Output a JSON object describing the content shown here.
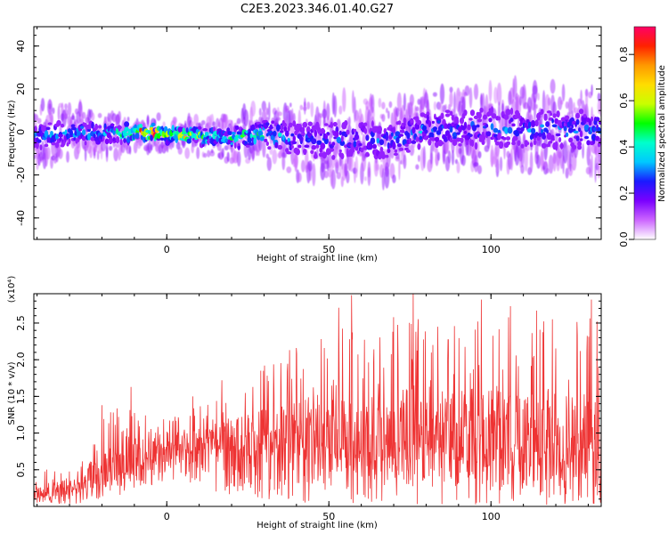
{
  "title": "C2E3.2023.346.01.40.G27",
  "chart_data": [
    {
      "type": "heatmap",
      "xlabel": "Height of straight line (km)",
      "ylabel": "Frequency (Hz)",
      "xlim": [
        -41,
        134
      ],
      "ylim": [
        -50,
        49
      ],
      "xticks": [
        0,
        50,
        100
      ],
      "yticks": [
        -40,
        -20,
        0,
        20,
        40
      ],
      "colorbar": {
        "label": "Normalized spectral amplitude",
        "range": [
          0,
          0.92
        ],
        "ticks": [
          0.0,
          0.2,
          0.4,
          0.6,
          0.8
        ],
        "colors": [
          "#ffffff",
          "#cc66ff",
          "#7a00ff",
          "#1a1aff",
          "#00c8ff",
          "#00ffcc",
          "#00ff00",
          "#c8ff00",
          "#ffdd00",
          "#ff9900",
          "#ff2200",
          "#ff0066"
        ]
      },
      "band": {
        "center_hz": [
          [
            -41,
            -2
          ],
          [
            -30,
            0
          ],
          [
            -20,
            -1
          ],
          [
            -10,
            0
          ],
          [
            0,
            -1
          ],
          [
            10,
            -2
          ],
          [
            20,
            -3
          ],
          [
            30,
            -1
          ],
          [
            40,
            -3
          ],
          [
            50,
            -4
          ],
          [
            60,
            -3
          ],
          [
            70,
            -4
          ],
          [
            80,
            2
          ],
          [
            90,
            1
          ],
          [
            100,
            2
          ],
          [
            110,
            1
          ],
          [
            120,
            1
          ],
          [
            134,
            1
          ]
        ],
        "halfwidth_hz": [
          [
            -41,
            6
          ],
          [
            -20,
            4
          ],
          [
            0,
            3
          ],
          [
            20,
            4
          ],
          [
            40,
            7
          ],
          [
            60,
            8
          ],
          [
            80,
            7
          ],
          [
            100,
            8
          ],
          [
            134,
            8
          ]
        ],
        "peak_amplitude": [
          [
            -41,
            0.35
          ],
          [
            -20,
            0.4
          ],
          [
            -5,
            0.9
          ],
          [
            5,
            0.7
          ],
          [
            15,
            0.55
          ],
          [
            30,
            0.5
          ],
          [
            40,
            0.3
          ],
          [
            60,
            0.3
          ],
          [
            80,
            0.35
          ],
          [
            100,
            0.3
          ],
          [
            134,
            0.35
          ]
        ]
      }
    },
    {
      "type": "line",
      "xlabel": "Height of straight line (km)",
      "ylabel": "SNR (10 * v/v)",
      "y_multiplier": "(x10⁴)",
      "xlim": [
        -41,
        134
      ],
      "ylim": [
        0,
        2.9
      ],
      "xticks": [
        0,
        50,
        100
      ],
      "yticks": [
        0.5,
        1.0,
        1.5,
        2.0,
        2.5
      ],
      "color": "#ee3333",
      "envelope": {
        "baseline": [
          [
            -41,
            0.15
          ],
          [
            -25,
            0.25
          ],
          [
            -15,
            0.5
          ],
          [
            0,
            0.75
          ],
          [
            10,
            0.85
          ],
          [
            20,
            0.85
          ],
          [
            40,
            0.9
          ],
          [
            60,
            0.8
          ],
          [
            80,
            0.9
          ],
          [
            100,
            0.85
          ],
          [
            134,
            0.75
          ]
        ],
        "max": [
          [
            -41,
            0.5
          ],
          [
            -25,
            0.7
          ],
          [
            -20,
            1.3
          ],
          [
            -10,
            1.6
          ],
          [
            0,
            1.2
          ],
          [
            10,
            1.5
          ],
          [
            20,
            1.7
          ],
          [
            30,
            2.1
          ],
          [
            45,
            2.5
          ],
          [
            52,
            2.8
          ],
          [
            65,
            2.8
          ],
          [
            75,
            2.9
          ],
          [
            90,
            2.7
          ],
          [
            110,
            2.8
          ],
          [
            134,
            2.8
          ]
        ],
        "min": [
          [
            -41,
            0.02
          ],
          [
            -20,
            0.05
          ],
          [
            0,
            0.35
          ],
          [
            20,
            0.15
          ],
          [
            40,
            0.05
          ],
          [
            60,
            0.02
          ],
          [
            134,
            0.02
          ]
        ],
        "peaks": [
          [
            -20,
            1.38
          ],
          [
            -11,
            1.63
          ],
          [
            8,
            1.5
          ],
          [
            17,
            1.72
          ],
          [
            29,
            1.85
          ],
          [
            40,
            2.16
          ],
          [
            53,
            2.71
          ],
          [
            57,
            2.88
          ],
          [
            70,
            2.58
          ],
          [
            76,
            2.93
          ],
          [
            97,
            2.82
          ],
          [
            106,
            2.73
          ],
          [
            114,
            2.67
          ],
          [
            131,
            2.82
          ]
        ]
      }
    }
  ]
}
